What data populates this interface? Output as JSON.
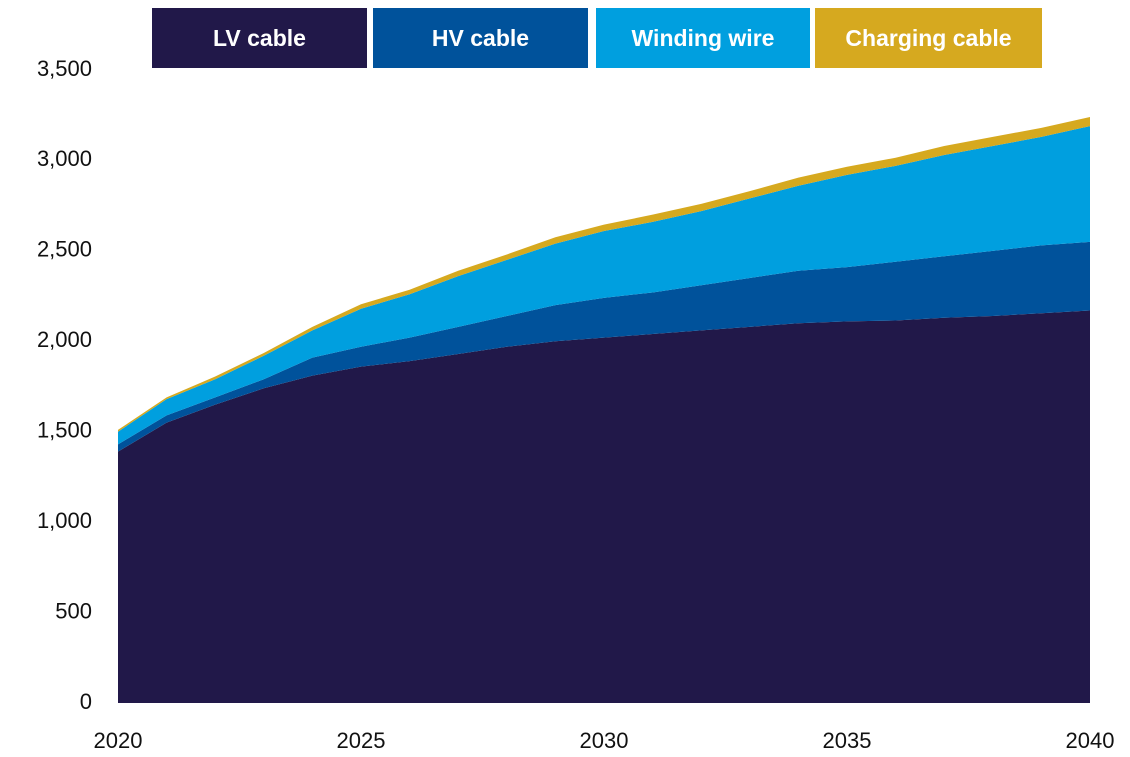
{
  "chart_data": {
    "type": "stacked_area",
    "x": [
      2020,
      2021,
      2022,
      2023,
      2024,
      2025,
      2026,
      2027,
      2028,
      2029,
      2030,
      2031,
      2032,
      2033,
      2034,
      2035,
      2036,
      2037,
      2038,
      2039,
      2040
    ],
    "series": [
      {
        "name": "LV cable",
        "color": "#211849",
        "values": [
          1390,
          1550,
          1650,
          1740,
          1810,
          1860,
          1890,
          1930,
          1970,
          2000,
          2020,
          2040,
          2060,
          2080,
          2100,
          2110,
          2115,
          2130,
          2140,
          2155,
          2170
        ]
      },
      {
        "name": "HV cable",
        "color": "#00529b",
        "values": [
          40,
          40,
          40,
          50,
          100,
          110,
          130,
          150,
          170,
          200,
          220,
          230,
          250,
          270,
          290,
          300,
          325,
          340,
          360,
          375,
          380
        ]
      },
      {
        "name": "Winding wire",
        "color": "#009fdf",
        "values": [
          70,
          90,
          100,
          130,
          150,
          210,
          240,
          280,
          310,
          340,
          370,
          390,
          410,
          440,
          470,
          510,
          530,
          560,
          580,
          600,
          640
        ]
      },
      {
        "name": "Charging cable",
        "color": "#d6a91f",
        "values": [
          10,
          10,
          15,
          15,
          20,
          25,
          25,
          30,
          30,
          35,
          35,
          40,
          40,
          40,
          45,
          45,
          45,
          50,
          50,
          50,
          50
        ]
      }
    ],
    "xlim": [
      2020,
      2040
    ],
    "xticks": [
      2020,
      2025,
      2030,
      2035,
      2040
    ],
    "ylim": [
      0,
      3500
    ],
    "yticks": [
      0,
      500,
      {
        "value": 1000,
        "label": "1,000"
      },
      {
        "value": 1500,
        "label": "1,500"
      },
      {
        "value": 2000,
        "label": "2,000"
      },
      {
        "value": 2500,
        "label": "2,500"
      },
      {
        "value": 3000,
        "label": "3,000"
      },
      {
        "value": 3500,
        "label": "3,500"
      }
    ]
  }
}
